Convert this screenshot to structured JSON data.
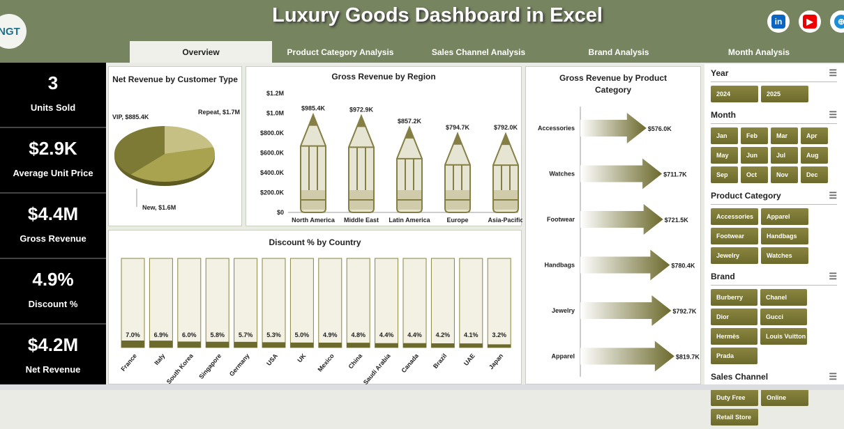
{
  "header": {
    "title": "Luxury Goods Dashboard in Excel",
    "logo": "NGT"
  },
  "social": [
    "linkedin-icon",
    "youtube-icon",
    "globe-icon"
  ],
  "tabs": [
    "Overview",
    "Product Category Analysis",
    "Sales Channel Analysis",
    "Brand Analysis",
    "Month Analysis"
  ],
  "kpis": [
    {
      "value": "3",
      "label": "Units Sold"
    },
    {
      "value": "$2.9K",
      "label": "Average Unit Price"
    },
    {
      "value": "$4.4M",
      "label": "Gross Revenue"
    },
    {
      "value": "4.9%",
      "label": "Discount %"
    },
    {
      "value": "$4.2M",
      "label": "Net Revenue"
    }
  ],
  "colors": {
    "header": "#76845f",
    "olive": "#8a8540",
    "dark_olive": "#6c6a2c"
  },
  "chart_data": [
    {
      "type": "pie",
      "title": "Net Revenue by Customer Type",
      "labels": [
        "VIP, $885.4K",
        "Repeat, $1.7M",
        "New, $1.6M"
      ],
      "categories": [
        "VIP",
        "Repeat",
        "New"
      ],
      "values": [
        885.4,
        1700,
        1600
      ]
    },
    {
      "type": "bar",
      "title": "Gross Revenue by Region",
      "categories": [
        "North America",
        "Middle East",
        "Latin America",
        "Europe",
        "Asia-Pacific"
      ],
      "values": [
        985.4,
        972.9,
        857.2,
        794.7,
        792.0
      ],
      "labels": [
        "$985.4K",
        "$972.9K",
        "$857.2K",
        "$794.7K",
        "$792.0K"
      ],
      "yticks": [
        "$0",
        "$200.0K",
        "$400.0K",
        "$600.0K",
        "$800.0K",
        "$1.0M",
        "$1.2M"
      ],
      "ylim": [
        0,
        1200
      ]
    },
    {
      "type": "bar",
      "title": "Discount % by Country",
      "categories": [
        "France",
        "Italy",
        "South Korea",
        "Singapore",
        "Germany",
        "USA",
        "UK",
        "Mexico",
        "China",
        "Saudi Arabia",
        "Canada",
        "Brazil",
        "UAE",
        "Japan"
      ],
      "values": [
        7.0,
        6.9,
        6.0,
        5.8,
        5.7,
        5.3,
        5.0,
        4.9,
        4.8,
        4.4,
        4.4,
        4.2,
        4.1,
        3.2
      ],
      "labels": [
        "7.0%",
        "6.9%",
        "6.0%",
        "5.8%",
        "5.7%",
        "5.3%",
        "5.0%",
        "4.9%",
        "4.8%",
        "4.4%",
        "4.4%",
        "4.2%",
        "4.1%",
        "3.2%"
      ]
    },
    {
      "type": "bar",
      "orientation": "horizontal",
      "title": "Gross Revenue by Product Category",
      "categories": [
        "Accessories",
        "Watches",
        "Footwear",
        "Handbags",
        "Jewelry",
        "Apparel"
      ],
      "values": [
        576.0,
        711.7,
        721.5,
        780.4,
        792.7,
        819.7
      ],
      "labels": [
        "$576.0K",
        "$711.7K",
        "$721.5K",
        "$780.4K",
        "$792.7K",
        "$819.7K"
      ]
    }
  ],
  "slicers": [
    {
      "title": "Year",
      "items": [
        "2024",
        "2025"
      ],
      "w": 68
    },
    {
      "title": "Month",
      "items": [
        "Jan",
        "Feb",
        "Mar",
        "Apr",
        "May",
        "Jun",
        "Jul",
        "Aug",
        "Sep",
        "Oct",
        "Nov",
        "Dec"
      ],
      "w": 39
    },
    {
      "title": "Product Category",
      "items": [
        "Accessories",
        "Apparel",
        "Footwear",
        "Handbags",
        "Jewelry",
        "Watches"
      ],
      "w": 68
    },
    {
      "title": "Brand",
      "items": [
        "Burberry",
        "Chanel",
        "Dior",
        "Gucci",
        "Hermès",
        "Louis Vuitton",
        "Prada"
      ],
      "w": 67
    },
    {
      "title": "Sales Channel",
      "items": [
        "Duty Free",
        "Online",
        "Retail Store"
      ],
      "w": 68
    }
  ]
}
